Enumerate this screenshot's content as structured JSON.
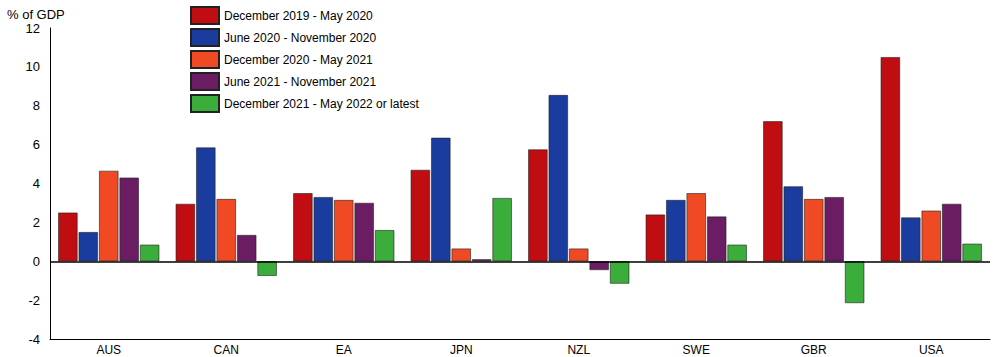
{
  "chart_data": {
    "type": "bar",
    "ylabel": "% of GDP",
    "categories": [
      "AUS",
      "CAN",
      "EA",
      "JPN",
      "NZL",
      "SWE",
      "GBR",
      "USA"
    ],
    "series": [
      {
        "name": "December 2019 - May 2020",
        "color": "#c00d12",
        "values": [
          2.5,
          2.95,
          3.5,
          4.7,
          5.75,
          2.4,
          7.2,
          10.5
        ]
      },
      {
        "name": "June 2020 - November 2020",
        "color": "#1a3c9e",
        "values": [
          1.5,
          5.85,
          3.3,
          6.35,
          8.55,
          3.15,
          3.85,
          2.25
        ]
      },
      {
        "name": "December 2020 - May 2021",
        "color": "#ef4a24",
        "values": [
          4.65,
          3.2,
          3.15,
          0.65,
          0.65,
          3.5,
          3.2,
          2.6
        ]
      },
      {
        "name": "June 2021 - November 2021",
        "color": "#6a1d62",
        "values": [
          4.3,
          1.35,
          3.0,
          0.1,
          -0.45,
          2.3,
          3.3,
          2.95
        ]
      },
      {
        "name": "December 2021 - May 2022 or latest",
        "color": "#3aad3a",
        "values": [
          0.85,
          -0.75,
          1.6,
          3.25,
          -1.15,
          0.85,
          -2.15,
          0.9
        ]
      }
    ],
    "ylim": [
      -4,
      12
    ],
    "yticks": [
      -4,
      -2,
      0,
      2,
      4,
      6,
      8,
      10,
      12
    ],
    "grid": false,
    "legend": "top"
  }
}
